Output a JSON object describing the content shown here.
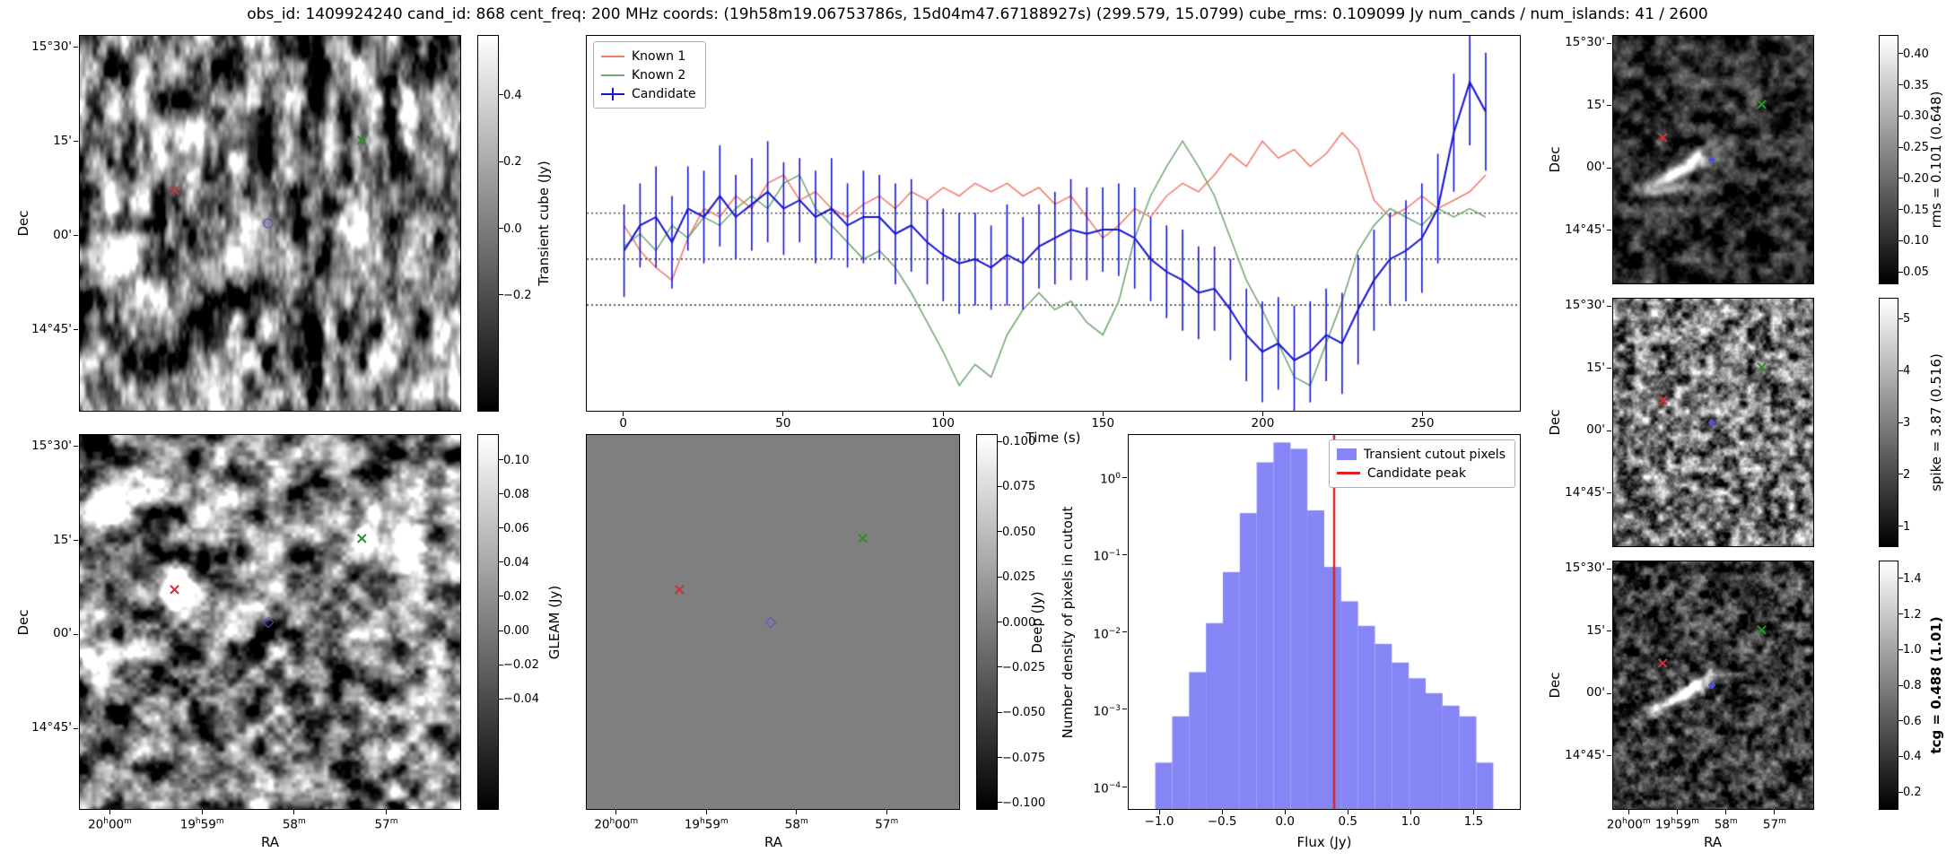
{
  "title": "obs_id: 1409924240 cand_id: 868 cent_freq: 200 MHz coords: (19h58m19.06753786s, 15d04m47.67188927s) (299.579, 15.0799) cube_rms: 0.109099 Jy num_cands / num_islands: 41 / 2600",
  "colors": {
    "known1": "#f27e6f",
    "known2": "#74a974",
    "candidate": "#1414d2",
    "hist_fill": "#8585f6",
    "peak_line": "#e02020",
    "marker_red": "#cc3333",
    "marker_green": "#2f8f2f",
    "marker_blue": "#5151d1"
  },
  "axes": {
    "dec_label": "Dec",
    "ra_label": "RA",
    "dec_ticks": {
      "labels": [
        "15°30'",
        "15'",
        "00'",
        "14°45'"
      ],
      "fracs": [
        0.033,
        0.283,
        0.533,
        0.783
      ]
    },
    "ra_ticks": {
      "labels": [
        "20h00m",
        "19h59m",
        "58m",
        "57m"
      ],
      "fracs": [
        0.081,
        0.322,
        0.563,
        0.804
      ]
    }
  },
  "markers": {
    "red_x": {
      "fx": 0.25,
      "fy": 0.415
    },
    "green_x": {
      "fx": 0.74,
      "fy": 0.28
    },
    "blue": {
      "fx": 0.495,
      "fy": 0.5
    }
  },
  "panels": {
    "transient": {
      "colorbar": {
        "label": "Transient cube (Jy)",
        "vmin": -0.55,
        "vmax": 0.58,
        "ticks": [
          0.4,
          0.2,
          0.0,
          -0.2
        ],
        "labels": [
          "0.4",
          "0.2",
          "0.0",
          "−0.2"
        ]
      }
    },
    "gleam": {
      "colorbar": {
        "label": "GLEAM (Jy)",
        "vmin": -0.105,
        "vmax": 0.115,
        "ticks": [
          0.1,
          0.08,
          0.06,
          0.04,
          0.02,
          0.0,
          -0.02,
          -0.04
        ],
        "labels": [
          "0.10",
          "0.08",
          "0.06",
          "0.04",
          "0.02",
          "0.00",
          "−0.02",
          "−0.04"
        ]
      }
    },
    "deep": {
      "colorbar": {
        "label": "Deep (Jy)",
        "vmin": -0.104,
        "vmax": 0.104,
        "ticks": [
          0.1,
          0.075,
          0.05,
          0.025,
          0.0,
          -0.025,
          -0.05,
          -0.075,
          -0.1
        ],
        "labels": [
          "0.100",
          "0.075",
          "0.050",
          "0.025",
          "0.000",
          "−0.025",
          "−0.050",
          "−0.075",
          "−0.100"
        ]
      }
    },
    "rms": {
      "colorbar": {
        "label": "rms = 0.101 (0.648)",
        "vmin": 0.03,
        "vmax": 0.43,
        "ticks": [
          0.4,
          0.35,
          0.3,
          0.25,
          0.2,
          0.15,
          0.1,
          0.05
        ],
        "labels": [
          "0.40",
          "0.35",
          "0.30",
          "0.25",
          "0.20",
          "0.15",
          "0.10",
          "0.05"
        ]
      }
    },
    "spike": {
      "colorbar": {
        "label": "spike = 3.87 (0.516)",
        "vmin": 0.6,
        "vmax": 5.4,
        "ticks": [
          5,
          4,
          3,
          2,
          1
        ],
        "labels": [
          "5",
          "4",
          "3",
          "2",
          "1"
        ]
      }
    },
    "tcg": {
      "colorbar": {
        "label": "tcg = 0.488 (1.01)",
        "bold": true,
        "vmin": 0.1,
        "vmax": 1.5,
        "ticks": [
          1.4,
          1.2,
          1.0,
          0.8,
          0.6,
          0.4,
          0.2
        ],
        "labels": [
          "1.4",
          "1.2",
          "1.0",
          "0.8",
          "0.6",
          "0.4",
          "0.2"
        ]
      }
    }
  },
  "chart_data": [
    {
      "type": "line",
      "title": "",
      "xlabel": "Time (s)",
      "ylabel": "",
      "xlim": [
        -11.7,
        280.7
      ],
      "ylim": [
        -0.36,
        0.53
      ],
      "xticks": [
        0,
        50,
        100,
        150,
        200,
        250
      ],
      "dotted_lines": [
        0.109,
        0.0,
        -0.109
      ],
      "legend_position": "upper-left",
      "x": [
        0,
        5,
        10,
        15,
        20,
        25,
        30,
        35,
        40,
        45,
        50,
        55,
        60,
        65,
        70,
        75,
        80,
        85,
        90,
        95,
        100,
        105,
        110,
        115,
        120,
        125,
        130,
        135,
        140,
        145,
        150,
        155,
        160,
        165,
        170,
        175,
        180,
        185,
        190,
        195,
        200,
        205,
        210,
        215,
        220,
        225,
        230,
        235,
        240,
        245,
        250,
        255,
        260,
        265,
        270
      ],
      "series": [
        {
          "name": "Known 1",
          "color_key": "known1",
          "values": [
            0.08,
            0.02,
            -0.02,
            -0.05,
            0.05,
            0.12,
            0.1,
            0.15,
            0.12,
            0.18,
            0.2,
            0.14,
            0.16,
            0.12,
            0.1,
            0.13,
            0.15,
            0.12,
            0.16,
            0.14,
            0.17,
            0.15,
            0.18,
            0.16,
            0.18,
            0.15,
            0.17,
            0.13,
            0.15,
            0.1,
            0.05,
            0.08,
            0.12,
            0.1,
            0.15,
            0.18,
            0.16,
            0.2,
            0.25,
            0.22,
            0.28,
            0.24,
            0.26,
            0.22,
            0.25,
            0.3,
            0.26,
            0.14,
            0.1,
            0.12,
            0.15,
            0.12,
            0.14,
            0.16,
            0.2
          ]
        },
        {
          "name": "Known 2",
          "color_key": "known2",
          "values": [
            0.03,
            0.06,
            0.02,
            0.08,
            0.05,
            0.1,
            0.08,
            0.12,
            0.15,
            0.12,
            0.18,
            0.2,
            0.12,
            0.08,
            0.04,
            0.0,
            0.02,
            -0.02,
            -0.08,
            -0.15,
            -0.22,
            -0.3,
            -0.25,
            -0.28,
            -0.18,
            -0.12,
            -0.08,
            -0.12,
            -0.1,
            -0.15,
            -0.18,
            -0.1,
            0.05,
            0.15,
            0.22,
            0.28,
            0.22,
            0.15,
            0.05,
            -0.05,
            -0.12,
            -0.2,
            -0.28,
            -0.3,
            -0.2,
            -0.1,
            0.02,
            0.08,
            0.12,
            0.1,
            0.08,
            0.12,
            0.1,
            0.12,
            0.1
          ]
        },
        {
          "name": "Candidate",
          "color_key": "candidate",
          "values": [
            0.02,
            0.08,
            0.1,
            0.04,
            0.12,
            0.1,
            0.15,
            0.1,
            0.13,
            0.16,
            0.12,
            0.14,
            0.1,
            0.12,
            0.08,
            0.1,
            0.1,
            0.06,
            0.08,
            0.04,
            0.01,
            -0.01,
            0.0,
            -0.02,
            0.01,
            -0.01,
            0.03,
            0.05,
            0.07,
            0.06,
            0.07,
            0.07,
            0.05,
            0.0,
            -0.03,
            -0.05,
            -0.08,
            -0.07,
            -0.12,
            -0.18,
            -0.22,
            -0.2,
            -0.24,
            -0.22,
            -0.18,
            -0.2,
            -0.12,
            -0.05,
            0.0,
            0.02,
            0.05,
            0.12,
            0.3,
            0.42,
            0.35
          ],
          "errors": [
            0.11,
            0.1,
            0.12,
            0.11,
            0.1,
            0.11,
            0.12,
            0.1,
            0.11,
            0.12,
            0.11,
            0.1,
            0.11,
            0.12,
            0.1,
            0.11,
            0.1,
            0.12,
            0.11,
            0.1,
            0.11,
            0.12,
            0.11,
            0.1,
            0.12,
            0.11,
            0.1,
            0.11,
            0.12,
            0.11,
            0.1,
            0.11,
            0.12,
            0.1,
            0.11,
            0.12,
            0.11,
            0.1,
            0.12,
            0.11,
            0.12,
            0.11,
            0.13,
            0.12,
            0.11,
            0.12,
            0.13,
            0.12,
            0.11,
            0.12,
            0.13,
            0.13,
            0.14,
            0.15,
            0.14
          ]
        }
      ]
    },
    {
      "type": "bar",
      "subtype": "histogram",
      "xlabel": "Flux (Jy)",
      "ylabel": "Number density of pixels in cutout",
      "legend": [
        "Transient cutout pixels",
        "Candidate peak"
      ],
      "legend_position": "upper-right",
      "yscale": "log",
      "xlim": [
        -1.25,
        1.875
      ],
      "ylim": [
        5e-05,
        3.63
      ],
      "xticks": [
        -1.0,
        -0.5,
        0.0,
        0.5,
        1.0,
        1.5
      ],
      "xtick_labels": [
        "−1.0",
        "−0.5",
        "0.0",
        "0.5",
        "1.0",
        "1.5"
      ],
      "ytick_exponents": [
        0,
        -1,
        -2,
        -3,
        -4
      ],
      "bin_width": 0.135,
      "bin_centers": [
        -0.97,
        -0.835,
        -0.7,
        -0.565,
        -0.43,
        -0.295,
        -0.16,
        -0.025,
        0.11,
        0.245,
        0.38,
        0.515,
        0.65,
        0.785,
        0.92,
        1.055,
        1.19,
        1.325,
        1.46,
        1.595
      ],
      "densities": [
        0.0002,
        0.0008,
        0.003,
        0.013,
        0.06,
        0.35,
        1.6,
        2.9,
        2.4,
        0.38,
        0.07,
        0.025,
        0.012,
        0.007,
        0.004,
        0.0025,
        0.0016,
        0.0011,
        0.0008,
        0.0002
      ],
      "candidate_peak": 0.39
    }
  ]
}
